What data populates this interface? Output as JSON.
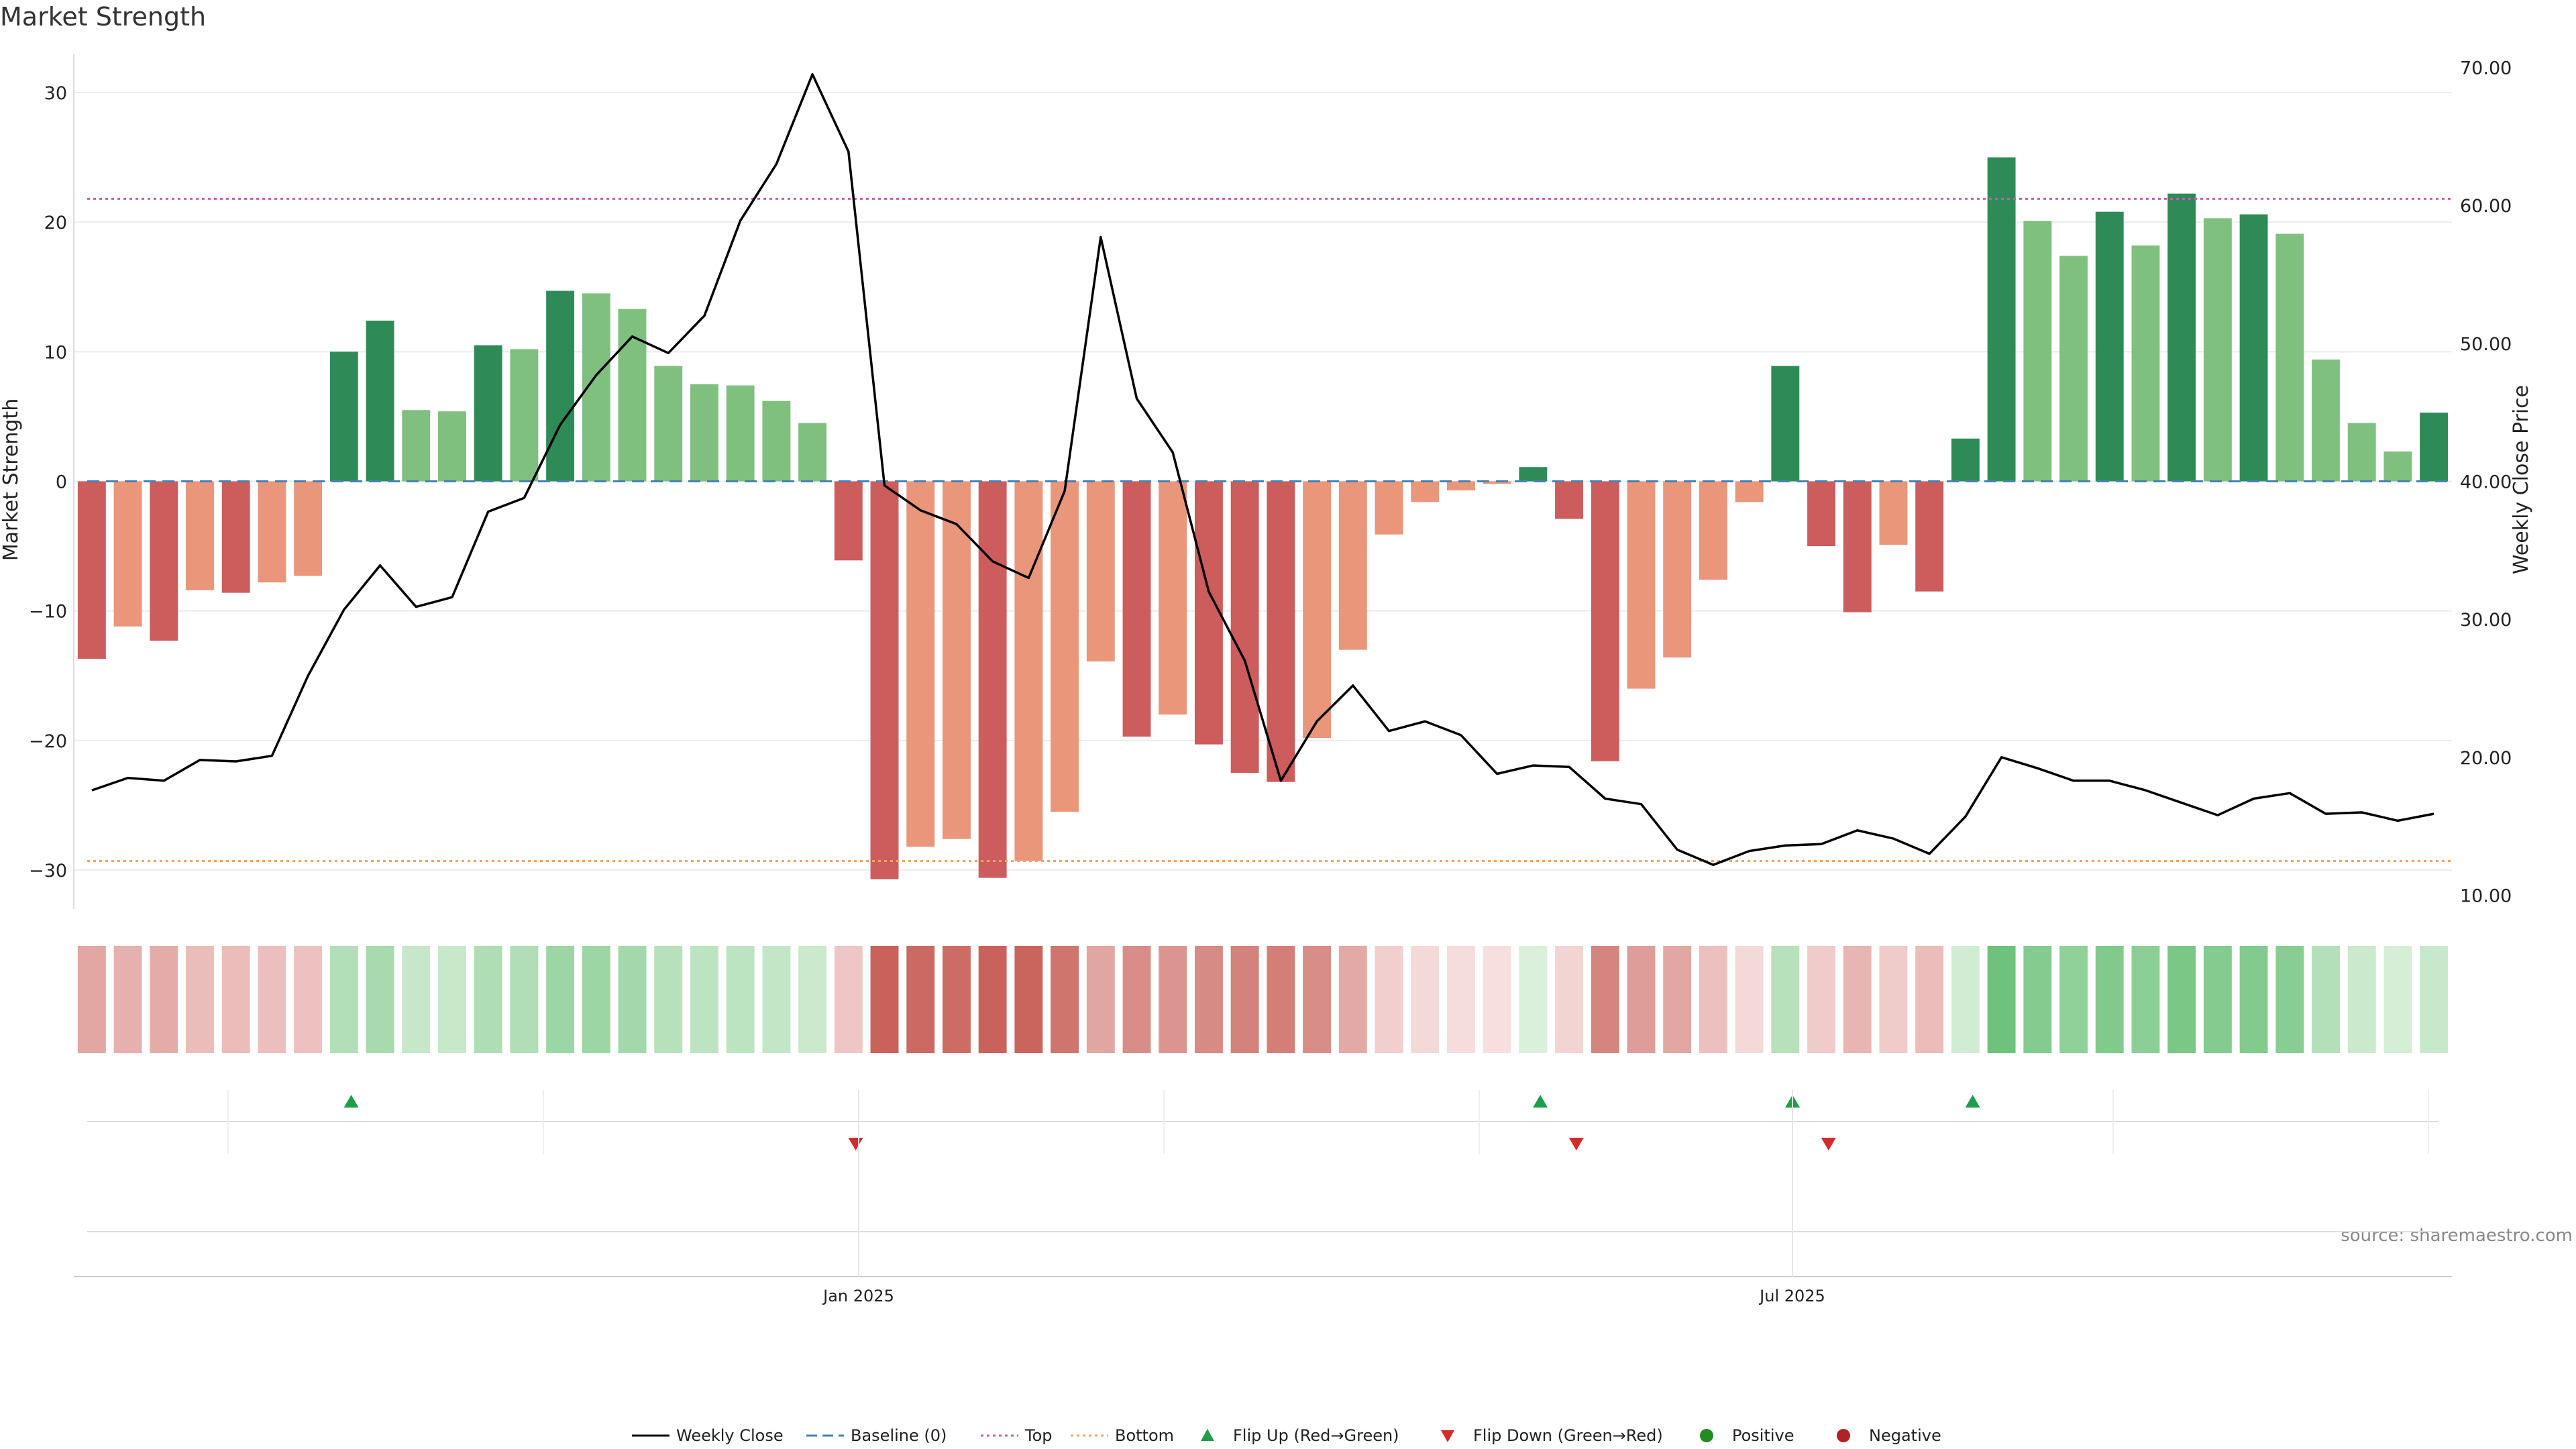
{
  "title": "Market Strength",
  "source": "source: sharemaestro.com",
  "colors": {
    "strong_green": "#2e8b57",
    "light_green": "#7fc07f",
    "strong_red": "#cd5c5c",
    "light_red": "#e9967a",
    "price_line": "#000000",
    "baseline": "#4682b4",
    "top": "#c060b0",
    "bottom": "#f4a460",
    "flip_up": "#1e9e4a",
    "flip_down": "#d42b2b",
    "positive": "#228b22",
    "negative": "#b22222"
  },
  "chart_data": {
    "type": "bar",
    "x_type": "weekly",
    "x_tick_labels": [
      "Jan 2025",
      "Jul 2025"
    ],
    "ylabel_left": "Market Strength",
    "ylabel_right": "Weekly Close Price",
    "left_ticks": [
      "30",
      "20",
      "10",
      "0",
      "−10",
      "−20",
      "−30"
    ],
    "right_ticks": [
      "70.00",
      "60.00",
      "50.00",
      "40.00",
      "30.00",
      "20.00",
      "10.00"
    ],
    "ylim_left": [
      -33,
      33
    ],
    "ylim_right": [
      9,
      71
    ],
    "grid": true,
    "thresholds": {
      "baseline": 0,
      "top": 21.8,
      "bottom": -29.3
    },
    "series": [
      {
        "name": "Market Strength",
        "values": [
          -13.7,
          -11.2,
          -12.3,
          -8.4,
          -8.6,
          -7.8,
          -7.3,
          10.0,
          12.4,
          5.5,
          5.4,
          10.5,
          10.2,
          14.7,
          14.5,
          13.3,
          8.9,
          7.5,
          7.4,
          6.2,
          4.5,
          -6.1,
          -30.7,
          -28.2,
          -27.6,
          -30.6,
          -29.3,
          -25.5,
          -13.9,
          -19.7,
          -18.0,
          -20.3,
          -22.5,
          -23.2,
          -19.8,
          -13.0,
          -4.1,
          -1.6,
          -0.7,
          -0.2,
          1.1,
          -2.9,
          -21.6,
          -16.0,
          -13.6,
          -7.6,
          -1.6,
          8.9,
          -5.0,
          -10.1,
          -4.9,
          -8.5,
          3.3,
          25.0,
          20.1,
          17.4,
          20.8,
          18.2,
          22.2,
          20.3,
          20.6,
          19.1,
          9.4,
          4.5,
          2.3,
          5.3
        ]
      },
      {
        "name": "Weekly Close",
        "values": [
          17.6,
          18.5,
          18.3,
          19.8,
          19.7,
          20.1,
          25.9,
          30.7,
          33.9,
          30.9,
          31.6,
          37.8,
          38.8,
          44.1,
          47.7,
          50.5,
          49.3,
          52.0,
          58.9,
          63.0,
          69.5,
          63.9,
          39.7,
          37.9,
          36.9,
          34.2,
          33.0,
          39.3,
          57.7,
          46.0,
          42.1,
          32.0,
          27.0,
          18.3,
          22.6,
          25.2,
          21.9,
          22.6,
          21.6,
          18.8,
          19.4,
          19.3,
          17.0,
          16.6,
          13.3,
          12.2,
          13.2,
          13.6,
          13.7,
          14.7,
          14.1,
          13.0,
          15.7,
          20.0,
          19.2,
          18.3,
          18.3,
          17.6,
          16.7,
          15.8,
          17.0,
          17.4,
          15.9,
          16.0,
          15.4,
          15.9
        ]
      }
    ],
    "flip_up_weeks": [
      7,
      40,
      47,
      52
    ],
    "flip_down_weeks": [
      21,
      41,
      48
    ],
    "legend": {
      "position": "bottom",
      "items": [
        {
          "label": "Weekly Close",
          "kind": "line",
          "color": "#000000"
        },
        {
          "label": "Baseline (0)",
          "kind": "dashed",
          "color": "#4682b4"
        },
        {
          "label": "Top",
          "kind": "dotted",
          "color": "#c060b0"
        },
        {
          "label": "Bottom",
          "kind": "dotted",
          "color": "#f4a460"
        },
        {
          "label": "Flip Up (Red→Green)",
          "kind": "tri-up",
          "color": "#1e9e4a"
        },
        {
          "label": "Flip Down (Green→Red)",
          "kind": "tri-down",
          "color": "#d42b2b"
        },
        {
          "label": "Positive",
          "kind": "dot",
          "color": "#228b22"
        },
        {
          "label": "Negative",
          "kind": "dot",
          "color": "#b22222"
        }
      ]
    }
  }
}
